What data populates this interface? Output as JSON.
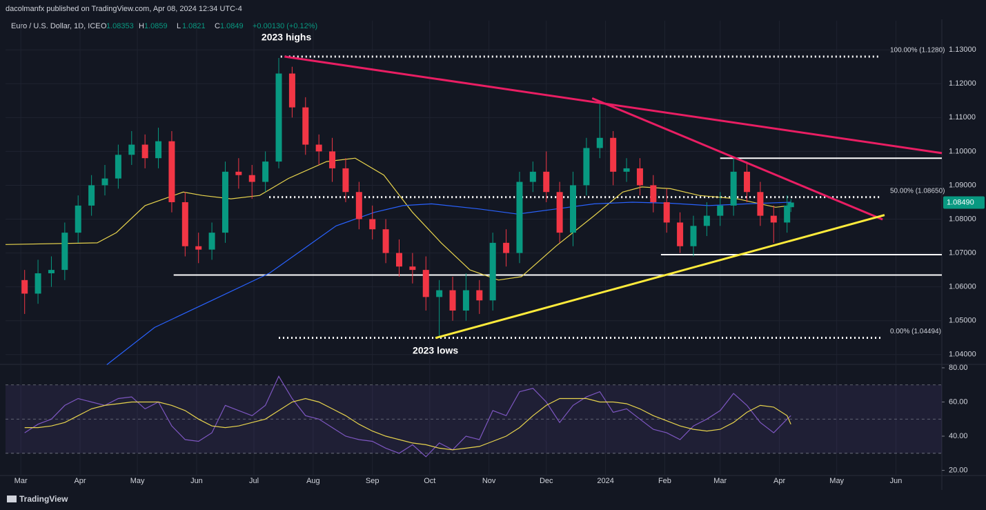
{
  "chart_data": {
    "type": "candlestick",
    "header": "dacolmanfx published on TradingView.com, Apr 08, 2024 12:34 UTC-4",
    "symbol": "Euro / U.S. Dollar, 1D, ICE",
    "legend_labels": [
      "O",
      "H",
      "L",
      "C"
    ],
    "change_label": "+0.00130 (+0.12%)",
    "last_price_label": "1.08490",
    "brand": "TradingView",
    "up_color": "#089981",
    "down_color": "#f23645",
    "x": [
      2,
      9,
      16,
      23,
      30,
      37,
      44,
      51,
      58,
      65,
      72,
      79,
      86,
      93,
      100,
      107,
      114,
      121,
      128,
      135,
      142,
      149,
      156,
      163,
      170,
      177,
      184,
      191,
      198,
      205,
      212,
      219,
      226,
      233,
      240,
      247,
      254,
      261,
      268,
      275,
      282,
      289,
      296,
      303,
      310,
      317,
      324,
      331,
      338,
      345,
      352,
      359,
      366,
      373,
      380,
      387,
      394,
      401,
      403
    ],
    "open": [
      1.062,
      1.058,
      1.064,
      1.065,
      1.076,
      1.084,
      1.09,
      1.092,
      1.099,
      1.102,
      1.098,
      1.103,
      1.085,
      1.072,
      1.071,
      1.076,
      1.094,
      1.093,
      1.091,
      1.097,
      1.123,
      1.113,
      1.102,
      1.1,
      1.095,
      1.088,
      1.08,
      1.077,
      1.07,
      1.066,
      1.065,
      1.057,
      1.059,
      1.053,
      1.059,
      1.056,
      1.073,
      1.07,
      1.091,
      1.094,
      1.088,
      1.076,
      1.09,
      1.101,
      1.104,
      1.094,
      1.095,
      1.09,
      1.085,
      1.079,
      1.072,
      1.078,
      1.081,
      1.084,
      1.094,
      1.088,
      1.081,
      1.079,
      1.08353
    ],
    "high": [
      1.065,
      1.068,
      1.069,
      1.079,
      1.087,
      1.093,
      1.096,
      1.102,
      1.106,
      1.105,
      1.107,
      1.106,
      1.088,
      1.076,
      1.079,
      1.097,
      1.098,
      1.096,
      1.1,
      1.1276,
      1.125,
      1.116,
      1.105,
      1.104,
      1.098,
      1.091,
      1.084,
      1.08,
      1.074,
      1.07,
      1.069,
      1.062,
      1.063,
      1.064,
      1.062,
      1.076,
      1.077,
      1.094,
      1.097,
      1.1,
      1.091,
      1.094,
      1.104,
      1.114,
      1.106,
      1.098,
      1.098,
      1.093,
      1.089,
      1.082,
      1.081,
      1.085,
      1.088,
      1.0981,
      1.097,
      1.091,
      1.084,
      1.087,
      1.0859
    ],
    "low": [
      1.052,
      1.055,
      1.06,
      1.062,
      1.073,
      1.081,
      1.087,
      1.089,
      1.096,
      1.095,
      1.095,
      1.082,
      1.069,
      1.067,
      1.068,
      1.073,
      1.089,
      1.086,
      1.088,
      1.095,
      1.11,
      1.099,
      1.096,
      1.091,
      1.085,
      1.077,
      1.074,
      1.067,
      1.063,
      1.061,
      1.053,
      1.0449,
      1.05,
      1.05,
      1.052,
      1.053,
      1.066,
      1.067,
      1.088,
      1.085,
      1.073,
      1.072,
      1.087,
      1.098,
      1.09,
      1.091,
      1.087,
      1.082,
      1.076,
      1.07,
      1.069,
      1.075,
      1.078,
      1.081,
      1.085,
      1.078,
      1.073,
      1.076,
      1.0821
    ],
    "close": [
      1.058,
      1.064,
      1.065,
      1.076,
      1.084,
      1.09,
      1.092,
      1.099,
      1.102,
      1.098,
      1.103,
      1.085,
      1.072,
      1.071,
      1.076,
      1.094,
      1.093,
      1.091,
      1.097,
      1.123,
      1.113,
      1.102,
      1.1,
      1.095,
      1.088,
      1.08,
      1.077,
      1.07,
      1.066,
      1.065,
      1.057,
      1.059,
      1.053,
      1.059,
      1.056,
      1.073,
      1.07,
      1.091,
      1.094,
      1.088,
      1.076,
      1.09,
      1.101,
      1.104,
      1.094,
      1.095,
      1.09,
      1.085,
      1.079,
      1.072,
      1.078,
      1.081,
      1.084,
      1.094,
      1.088,
      1.081,
      1.079,
      1.084,
      1.0849
    ],
    "xlim": [
      -8,
      482
    ],
    "ylim": [
      1.0371,
      1.1386
    ],
    "xticks": [
      {
        "value": 0,
        "label": "Mar"
      },
      {
        "value": 31,
        "label": "Apr"
      },
      {
        "value": 61,
        "label": "May"
      },
      {
        "value": 92,
        "label": "Jun"
      },
      {
        "value": 122,
        "label": "Jul"
      },
      {
        "value": 153,
        "label": "Aug"
      },
      {
        "value": 184,
        "label": "Sep"
      },
      {
        "value": 214,
        "label": "Oct"
      },
      {
        "value": 245,
        "label": "Nov"
      },
      {
        "value": 275,
        "label": "Dec"
      },
      {
        "value": 306,
        "label": "2024"
      },
      {
        "value": 337,
        "label": "Feb"
      },
      {
        "value": 366,
        "label": "Mar"
      },
      {
        "value": 397,
        "label": "Apr"
      },
      {
        "value": 427,
        "label": "May"
      },
      {
        "value": 458,
        "label": "Jun"
      }
    ],
    "yticks": [
      {
        "value": 1.13,
        "label": "1.13000"
      },
      {
        "value": 1.12,
        "label": "1.12000"
      },
      {
        "value": 1.11,
        "label": "1.11000"
      },
      {
        "value": 1.1,
        "label": "1.10000"
      },
      {
        "value": 1.09,
        "label": "1.09000"
      },
      {
        "value": 1.08,
        "label": "1.08000"
      },
      {
        "value": 1.07,
        "label": "1.07000"
      },
      {
        "value": 1.06,
        "label": "1.06000"
      },
      {
        "value": 1.05,
        "label": "1.05000"
      },
      {
        "value": 1.04,
        "label": "1.04000"
      }
    ],
    "lines": [
      {
        "color": "#e8d44d",
        "x": [
          -8,
          40,
          50,
          65,
          85,
          95,
          110,
          125,
          140,
          160,
          175,
          190,
          205,
          220,
          235,
          250,
          262,
          280,
          300,
          315,
          325,
          340,
          355,
          375,
          395,
          403
        ],
        "values": [
          1.0725,
          1.073,
          1.076,
          1.084,
          1.088,
          1.087,
          1.086,
          1.087,
          1.092,
          1.097,
          1.098,
          1.093,
          1.082,
          1.073,
          1.065,
          1.062,
          1.063,
          1.072,
          1.081,
          1.088,
          1.0895,
          1.089,
          1.087,
          1.086,
          1.0835,
          1.084
        ]
      },
      {
        "color": "#2962ff",
        "x": [
          45,
          70,
          100,
          130,
          150,
          165,
          185,
          200,
          215,
          240,
          260,
          280,
          300,
          320,
          340,
          360,
          380,
          403
        ],
        "values": [
          1.037,
          1.048,
          1.056,
          1.064,
          1.072,
          1.078,
          1.082,
          1.084,
          1.0845,
          1.083,
          1.0815,
          1.083,
          1.0845,
          1.085,
          1.0847,
          1.084,
          1.0845,
          1.085
        ]
      }
    ],
    "fib_levels": [
      {
        "value": 1.128,
        "label": "100.00% (1.1280)",
        "x": [
          136,
          450
        ]
      },
      {
        "value": 1.0865,
        "label": "50.00% (1.08650)",
        "x": [
          130,
          450
        ]
      },
      {
        "value": 1.04494,
        "label": "0.00% (1.04494)",
        "x": [
          135,
          450
        ]
      }
    ],
    "support_levels": [
      {
        "value": 1.098,
        "x": [
          366,
          482
        ]
      },
      {
        "value": 1.0695,
        "x": [
          335,
          482
        ]
      },
      {
        "value": 1.0635,
        "x": [
          80,
          482
        ]
      }
    ],
    "trendlines": [
      {
        "color": "#e91e63",
        "x": [
          138,
          482
        ],
        "values": [
          1.128,
          1.0995
        ]
      },
      {
        "color": "#e91e63",
        "x": [
          299,
          451
        ],
        "values": [
          1.1157,
          1.0799
        ]
      },
      {
        "color": "#ffeb3b",
        "x": [
          217,
          452
        ],
        "values": [
          1.0449,
          1.0812
        ]
      }
    ],
    "annotations": [
      {
        "text": "2023 highs",
        "x": 139,
        "y": 1.1335
      },
      {
        "text": "2023 lows",
        "x": 217,
        "y": 1.041
      }
    ],
    "rsi": {
      "ylim": [
        17,
        82
      ],
      "yticks": [
        {
          "value": 80,
          "label": "80.00"
        },
        {
          "value": 60,
          "label": "60.00"
        },
        {
          "value": 40,
          "label": "40.00"
        },
        {
          "value": 20,
          "label": "20.00"
        }
      ],
      "bands": [
        70,
        30
      ],
      "midline": 50,
      "color": "#7e57c2",
      "ma_color": "#e8d44d",
      "values": [
        42,
        47,
        50,
        58,
        62,
        60,
        58,
        62,
        63,
        56,
        60,
        46,
        38,
        37,
        42,
        58,
        55,
        52,
        58,
        75,
        62,
        52,
        50,
        45,
        40,
        38,
        37,
        33,
        30,
        35,
        28,
        36,
        32,
        40,
        38,
        55,
        52,
        66,
        68,
        60,
        48,
        58,
        63,
        66,
        54,
        56,
        50,
        44,
        42,
        38,
        46,
        50,
        55,
        65,
        58,
        48,
        42,
        50,
        52
      ],
      "ma": [
        45,
        45,
        46,
        48,
        52,
        56,
        58,
        59,
        60,
        60,
        60,
        58,
        55,
        50,
        46,
        45,
        46,
        48,
        50,
        55,
        60,
        62,
        60,
        56,
        52,
        47,
        43,
        40,
        38,
        36,
        35,
        33,
        32,
        33,
        34,
        37,
        40,
        45,
        52,
        58,
        62,
        62,
        62,
        60,
        60,
        59,
        56,
        52,
        49,
        46,
        44,
        43,
        44,
        48,
        54,
        58,
        57,
        52,
        47
      ]
    }
  }
}
